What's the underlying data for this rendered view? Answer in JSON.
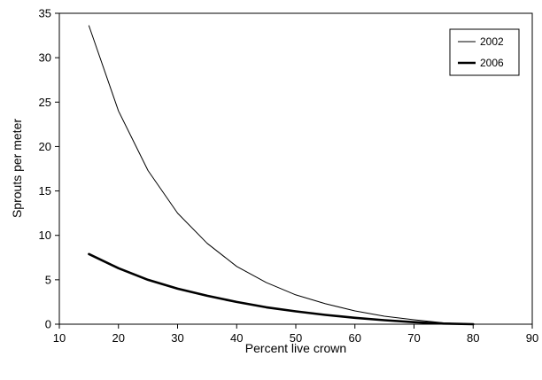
{
  "chart_data": {
    "type": "line",
    "title": "",
    "xlabel": "Percent live crown",
    "ylabel": "Sprouts per meter",
    "xlim": [
      10,
      90
    ],
    "ylim": [
      0,
      35
    ],
    "xticks": [
      10,
      20,
      30,
      40,
      50,
      60,
      70,
      80,
      90
    ],
    "yticks": [
      0,
      5,
      10,
      15,
      20,
      25,
      30,
      35
    ],
    "grid": false,
    "legend": "top-right",
    "series": [
      {
        "name": "2002",
        "color": "#000000",
        "style": "thin",
        "x": [
          15,
          20,
          25,
          30,
          35,
          40,
          45,
          50,
          55,
          60,
          65,
          70,
          75,
          80,
          85,
          90
        ],
        "y": [
          33.6,
          24.0,
          17.3,
          12.5,
          9.1,
          6.5,
          4.7,
          3.3,
          2.3,
          1.5,
          0.9,
          0.5,
          0.15,
          0.0,
          0.0,
          0.0
        ]
      },
      {
        "name": "2006",
        "color": "#000000",
        "style": "thick",
        "x": [
          15,
          20,
          25,
          30,
          35,
          40,
          45,
          50,
          55,
          60,
          65,
          70,
          75,
          80
        ],
        "y": [
          7.9,
          6.3,
          5.0,
          4.0,
          3.2,
          2.5,
          1.9,
          1.45,
          1.05,
          0.72,
          0.45,
          0.23,
          0.07,
          0.0
        ]
      }
    ]
  }
}
